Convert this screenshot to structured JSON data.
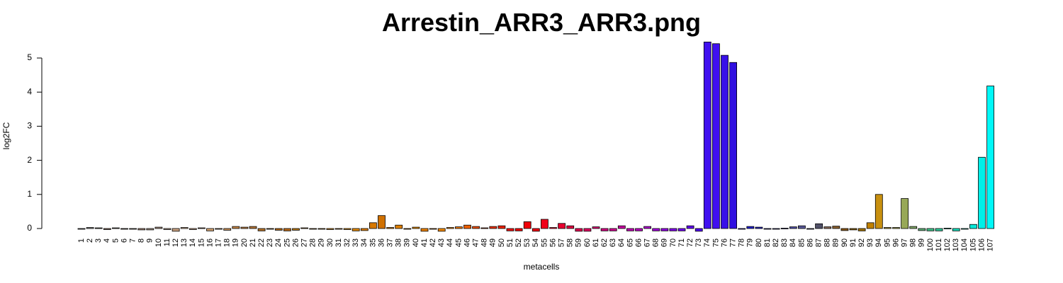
{
  "chart_data": {
    "type": "bar",
    "title": "Arrestin_ARR3_ARR3.png",
    "xlabel": "metacells",
    "ylabel": "log2FC",
    "ylim": [
      0,
      5.5
    ],
    "yticks": [
      0,
      1,
      2,
      3,
      4,
      5
    ],
    "grid": false,
    "legend": "none",
    "categories": [
      "1",
      "2",
      "3",
      "4",
      "5",
      "6",
      "7",
      "8",
      "9",
      "10",
      "11",
      "12",
      "13",
      "14",
      "15",
      "16",
      "17",
      "18",
      "19",
      "20",
      "21",
      "22",
      "23",
      "24",
      "25",
      "26",
      "27",
      "28",
      "29",
      "30",
      "31",
      "32",
      "33",
      "34",
      "35",
      "36",
      "37",
      "38",
      "39",
      "40",
      "41",
      "42",
      "43",
      "44",
      "45",
      "46",
      "47",
      "48",
      "49",
      "50",
      "51",
      "52",
      "53",
      "54",
      "55",
      "56",
      "57",
      "58",
      "59",
      "60",
      "61",
      "62",
      "63",
      "64",
      "65",
      "66",
      "67",
      "68",
      "69",
      "70",
      "71",
      "72",
      "73",
      "74",
      "75",
      "76",
      "77",
      "78",
      "79",
      "80",
      "81",
      "82",
      "83",
      "84",
      "85",
      "86",
      "87",
      "88",
      "89",
      "90",
      "91",
      "92",
      "93",
      "94",
      "95",
      "96",
      "97",
      "98",
      "99",
      "100",
      "101",
      "102",
      "103",
      "104",
      "105",
      "106",
      "107"
    ],
    "values": [
      -0.02,
      0.03,
      0.02,
      -0.03,
      0.02,
      -0.01,
      -0.02,
      -0.04,
      -0.04,
      0.04,
      -0.03,
      -0.08,
      0.03,
      -0.03,
      0.02,
      -0.07,
      -0.01,
      -0.05,
      0.06,
      0.04,
      0.06,
      -0.07,
      -0.02,
      -0.05,
      -0.07,
      -0.05,
      0.02,
      -0.01,
      -0.02,
      -0.03,
      -0.02,
      -0.03,
      -0.07,
      -0.06,
      0.17,
      0.38,
      0.03,
      0.1,
      -0.01,
      0.04,
      -0.08,
      -0.01,
      -0.08,
      0.03,
      0.05,
      0.1,
      0.06,
      0.02,
      0.06,
      0.08,
      -0.07,
      -0.07,
      0.2,
      -0.08,
      0.27,
      0.03,
      0.15,
      0.08,
      -0.08,
      -0.08,
      0.05,
      -0.07,
      -0.07,
      0.08,
      -0.07,
      -0.07,
      0.06,
      -0.07,
      -0.07,
      -0.07,
      -0.07,
      0.08,
      -0.08,
      5.47,
      5.42,
      5.08,
      4.87,
      -0.01,
      0.06,
      0.04,
      -0.02,
      -0.01,
      0.01,
      0.05,
      0.08,
      -0.01,
      0.14,
      0.05,
      0.07,
      -0.06,
      -0.04,
      -0.07,
      0.17,
      1.0,
      0.03,
      0.03,
      0.88,
      0.06,
      -0.06,
      -0.07,
      -0.07,
      0.01,
      -0.07,
      -0.02,
      0.12,
      2.09,
      4.18
    ],
    "colors": [
      "#808080",
      "#808080",
      "#7a7a6a",
      "#886a5a",
      "#8a7a6a",
      "#7a6a5a",
      "#9a8a7a",
      "#aa8a7a",
      "#aa9a8a",
      "#a89080",
      "#b8a090",
      "#c8a080",
      "#c8a888",
      "#c8a080",
      "#b89878",
      "#d0a070",
      "#d0a878",
      "#c89058",
      "#c88848",
      "#c08040",
      "#b87838",
      "#b07028",
      "#a86818",
      "#b06818",
      "#b86818",
      "#b87818",
      "#c08028",
      "#c88830",
      "#c88018",
      "#d08010",
      "#d88010",
      "#d88808",
      "#e08808",
      "#e08000",
      "#d87800",
      "#d07000",
      "#d87800",
      "#e08000",
      "#e88800",
      "#f09000",
      "#e88000",
      "#e88800",
      "#f08800",
      "#f08000",
      "#f07800",
      "#f06000",
      "#f05000",
      "#e84000",
      "#f03000",
      "#f02000",
      "#f01010",
      "#f00000",
      "#f00008",
      "#f00010",
      "#f00018",
      "#f00020",
      "#e80030",
      "#e00040",
      "#e00050",
      "#e00060",
      "#d80070",
      "#d00080",
      "#d00090",
      "#c800a0",
      "#c000b0",
      "#b800c0",
      "#b000d0",
      "#a000d8",
      "#9000e0",
      "#8000e8",
      "#7000f0",
      "#6000f0",
      "#5000f0",
      "#4010f0",
      "#4010f0",
      "#3810e8",
      "#3010e0",
      "#2818d8",
      "#2020d0",
      "#2020c8",
      "#3030c0",
      "#4040b8",
      "#4848b0",
      "#5050a8",
      "#585898",
      "#505078",
      "#505068",
      "#8a6a5a",
      "#8a6030",
      "#8a5818",
      "#8a6010",
      "#a07000",
      "#c08000",
      "#c89010",
      "#b8a030",
      "#a8a848",
      "#98a858",
      "#80a868",
      "#60b078",
      "#40c088",
      "#30c898",
      "#20d0a8",
      "#18d8b8",
      "#10e0c8",
      "#08e8d8",
      "#00f0e8",
      "#00f8f8"
    ]
  }
}
